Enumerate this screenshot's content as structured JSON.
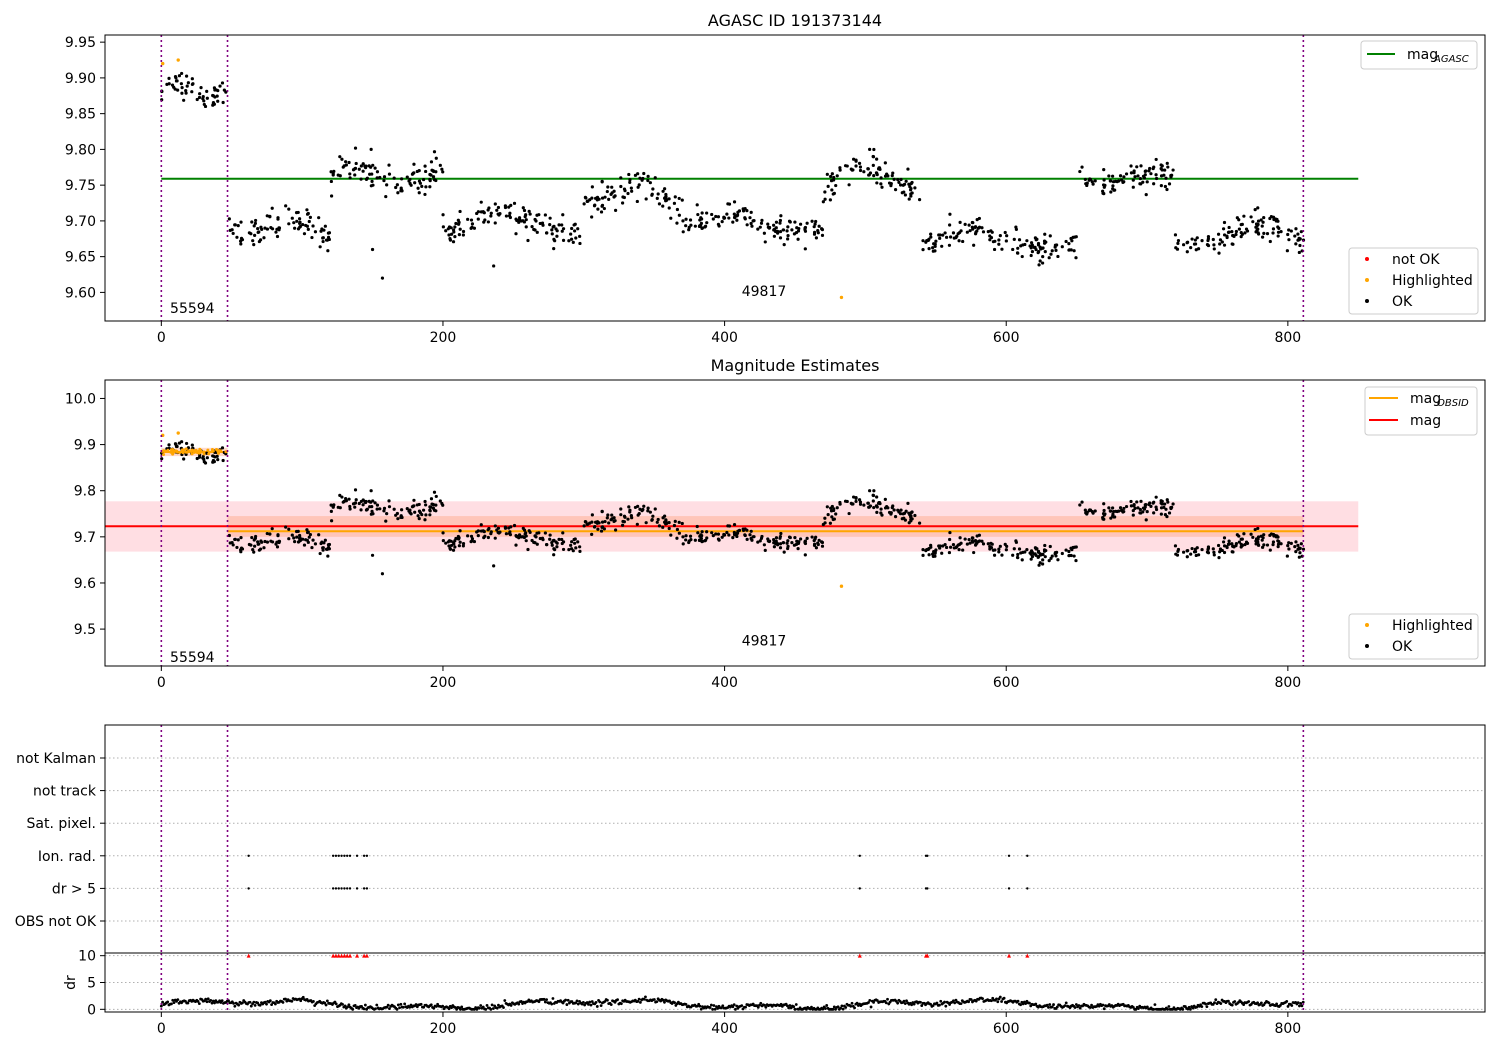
{
  "chart_data": [
    {
      "type": "scatter",
      "title": "AGASC ID 191373144",
      "xlim": [
        -40,
        940
      ],
      "ylim": [
        9.56,
        9.96
      ],
      "xticks": [
        0,
        200,
        400,
        600,
        800
      ],
      "yticks": [
        9.6,
        9.65,
        9.7,
        9.75,
        9.8,
        9.85,
        9.9,
        9.95
      ],
      "ytick_decimals": 2,
      "vlines": [
        0,
        47,
        811
      ],
      "annotations": [
        {
          "text": "55594",
          "x": 22,
          "y": 9.578
        },
        {
          "text": "49817",
          "x": 428,
          "y": 9.602
        }
      ],
      "hlines": [
        {
          "name": "mag_AGASC",
          "y": 9.759,
          "x0": 0,
          "x1": 850,
          "color": "#008000"
        }
      ],
      "ok_segments": [
        {
          "x0": 0,
          "x1": 46,
          "mean": 9.884,
          "amp": 0.008,
          "noise": 0.013
        },
        {
          "x0": 48,
          "x1": 120,
          "mean": 9.69,
          "amp": 0.012,
          "noise": 0.015
        },
        {
          "x0": 120,
          "x1": 200,
          "mean": 9.765,
          "amp": 0.01,
          "noise": 0.015
        },
        {
          "x0": 200,
          "x1": 300,
          "mean": 9.695,
          "amp": 0.015,
          "noise": 0.014
        },
        {
          "x0": 300,
          "x1": 370,
          "mean": 9.735,
          "amp": 0.012,
          "noise": 0.015
        },
        {
          "x0": 370,
          "x1": 470,
          "mean": 9.695,
          "amp": 0.01,
          "noise": 0.013
        },
        {
          "x0": 470,
          "x1": 540,
          "mean": 9.76,
          "amp": 0.015,
          "noise": 0.015
        },
        {
          "x0": 540,
          "x1": 650,
          "mean": 9.672,
          "amp": 0.012,
          "noise": 0.013
        },
        {
          "x0": 650,
          "x1": 720,
          "mean": 9.76,
          "amp": 0.008,
          "noise": 0.015
        },
        {
          "x0": 720,
          "x1": 812,
          "mean": 9.68,
          "amp": 0.015,
          "noise": 0.014
        }
      ],
      "ok_extra": [
        [
          150,
          9.66
        ],
        [
          157,
          9.62
        ],
        [
          236,
          9.637
        ],
        [
          149,
          9.8
        ],
        [
          503,
          9.8
        ]
      ],
      "highlighted": [
        [
          1,
          9.92
        ],
        [
          12,
          9.925
        ],
        [
          483,
          9.593
        ]
      ],
      "series": [
        {
          "name": "not OK",
          "color": "#ff0000",
          "points": []
        },
        {
          "name": "Highlighted",
          "color": "#ffa500"
        },
        {
          "name": "OK",
          "color": "#000000"
        }
      ],
      "legend_top": {
        "placement": "top-right",
        "entries": [
          {
            "main": "mag",
            "sub": "AGASC",
            "color": "#008000"
          }
        ]
      },
      "legend_bottom": {
        "placement": "bottom-right",
        "entries": [
          {
            "label": "not OK",
            "color": "#ff0000"
          },
          {
            "label": "Highlighted",
            "color": "#ffa500"
          },
          {
            "label": "OK",
            "color": "#000000"
          }
        ]
      }
    },
    {
      "type": "scatter",
      "title": "Magnitude Estimates",
      "xlim": [
        -40,
        940
      ],
      "ylim": [
        9.42,
        10.04
      ],
      "xticks": [
        0,
        200,
        400,
        600,
        800
      ],
      "yticks": [
        9.5,
        9.6,
        9.7,
        9.8,
        9.9,
        10.0
      ],
      "ytick_decimals": 1,
      "vlines": [
        0,
        47,
        811
      ],
      "annotations": [
        {
          "text": "55594",
          "x": 22,
          "y": 9.44
        },
        {
          "text": "49817",
          "x": 428,
          "y": 9.475
        }
      ],
      "bands": [
        {
          "y0": 9.668,
          "y1": 9.777,
          "x0": -40,
          "x1": 850,
          "color": "#ffb6c1",
          "opacity": 0.45
        },
        {
          "y0": 9.7,
          "y1": 9.745,
          "x0": 47,
          "x1": 811,
          "color": "#ffa07a",
          "opacity": 0.4
        },
        {
          "y0": 9.875,
          "y1": 9.893,
          "x0": 0,
          "x1": 47,
          "color": "#ffa07a",
          "opacity": 0.4
        }
      ],
      "hlines": [
        {
          "name": "mag_OBSID",
          "y": 9.884,
          "x0": 0,
          "x1": 47,
          "color": "#ffa500"
        },
        {
          "name": "mag_OBSID",
          "y": 9.712,
          "x0": 47,
          "x1": 811,
          "color": "#ffa500"
        },
        {
          "name": "mag",
          "y": 9.723,
          "x0": -40,
          "x1": 850,
          "color": "#ff0000"
        }
      ],
      "highlighted": [
        [
          1,
          9.92
        ],
        [
          12,
          9.925
        ],
        [
          483,
          9.593
        ]
      ],
      "highlighted_band": {
        "x0": 0,
        "x1": 46,
        "y": 9.884
      },
      "legend_top": {
        "placement": "top-right",
        "entries": [
          {
            "main": "mag",
            "sub": "OBSID",
            "color": "#ffa500"
          },
          {
            "main": "mag",
            "sub": "",
            "color": "#ff0000"
          }
        ]
      },
      "legend_bottom": {
        "placement": "bottom-right",
        "entries": [
          {
            "label": "Highlighted",
            "color": "#ffa500"
          },
          {
            "label": "OK",
            "color": "#000000"
          }
        ]
      }
    },
    {
      "type": "scatter",
      "title": "",
      "xlim": [
        -40,
        940
      ],
      "xticks": [
        0,
        200,
        400,
        600,
        800
      ],
      "vlines": [
        0,
        47,
        811
      ],
      "flag_rows": [
        "not Kalman",
        "not track",
        "Sat. pixel.",
        "Ion. rad.",
        "dr > 5",
        "OBS not OK"
      ],
      "flag_points": {
        "Ion. rad.": [
          62,
          122,
          124,
          126,
          128,
          130,
          132,
          134,
          139,
          144,
          146,
          496,
          543,
          544,
          602,
          615
        ],
        "dr > 5": [
          62,
          122,
          124,
          126,
          128,
          130,
          132,
          134,
          139,
          144,
          146,
          496,
          543,
          544,
          602,
          615
        ]
      },
      "dr_ylabel": "dr",
      "dr_yticks": [
        0,
        5,
        10
      ],
      "dr_ylim": [
        -0.5,
        10.5
      ],
      "dr_clipped_x": [
        62,
        122,
        124,
        126,
        128,
        130,
        132,
        134,
        139,
        144,
        146,
        496,
        543,
        544,
        602,
        615
      ],
      "dr_clip_color": "#ff0000"
    }
  ]
}
